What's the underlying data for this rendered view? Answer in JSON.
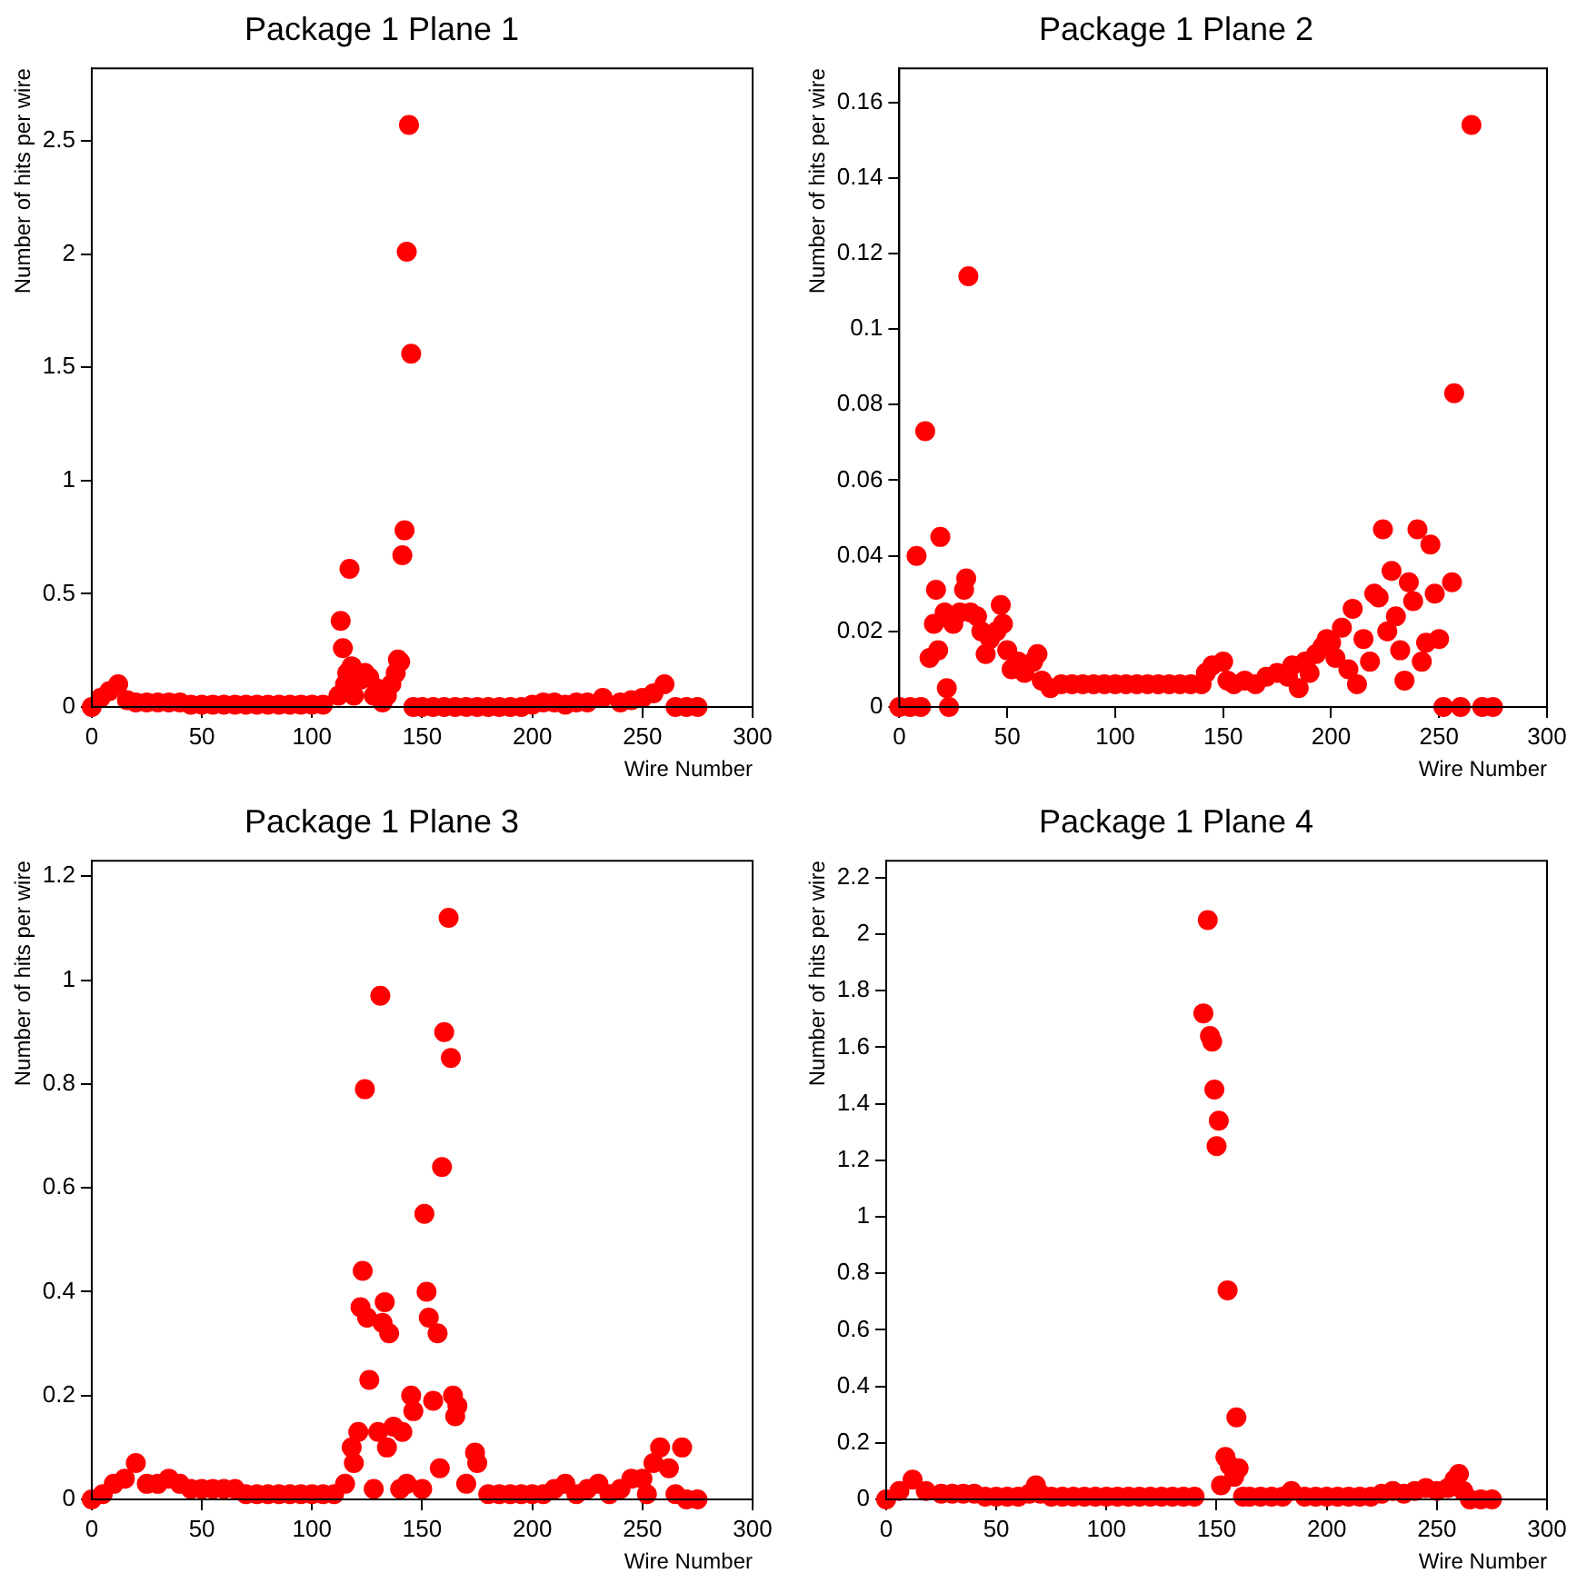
{
  "chart_data": [
    {
      "type": "scatter",
      "title": "Package 1 Plane 1",
      "xlabel": "Wire Number",
      "ylabel": "Number of hits per wire",
      "color": "#ff0000",
      "marker": "circle",
      "xlim": [
        0,
        300
      ],
      "xticks": [
        0,
        50,
        100,
        150,
        200,
        250,
        300
      ],
      "ylim": [
        0,
        2.82
      ],
      "yticks": [
        0,
        0.5,
        1,
        1.5,
        2,
        2.5
      ],
      "x": [
        0,
        4,
        8,
        12,
        16,
        20,
        25,
        30,
        35,
        40,
        45,
        50,
        55,
        60,
        65,
        70,
        75,
        80,
        85,
        90,
        95,
        100,
        105,
        112,
        113,
        114,
        115,
        116,
        117,
        118,
        119,
        122,
        124,
        126,
        128,
        130,
        132,
        134,
        136,
        138,
        139,
        140,
        141,
        142,
        143,
        144,
        145,
        146,
        150,
        155,
        160,
        165,
        170,
        175,
        180,
        185,
        190,
        195,
        200,
        205,
        210,
        215,
        220,
        225,
        232,
        240,
        245,
        250,
        255,
        260,
        265,
        270,
        275
      ],
      "values": [
        0,
        0.04,
        0.07,
        0.1,
        0.03,
        0.02,
        0.02,
        0.02,
        0.02,
        0.02,
        0.01,
        0.01,
        0.01,
        0.01,
        0.01,
        0.01,
        0.01,
        0.01,
        0.01,
        0.01,
        0.01,
        0.01,
        0.01,
        0.05,
        0.38,
        0.26,
        0.1,
        0.15,
        0.61,
        0.18,
        0.05,
        0.12,
        0.15,
        0.13,
        0.05,
        0.08,
        0.02,
        0.05,
        0.1,
        0.15,
        0.21,
        0.2,
        0.67,
        0.78,
        2.01,
        2.57,
        1.56,
        0,
        0,
        0,
        0,
        0,
        0,
        0,
        0,
        0,
        0,
        0,
        0.01,
        0.02,
        0.02,
        0.01,
        0.02,
        0.02,
        0.04,
        0.02,
        0.03,
        0.04,
        0.06,
        0.1,
        0,
        0,
        0
      ]
    },
    {
      "type": "scatter",
      "title": "Package 1 Plane 2",
      "xlabel": "Wire Number",
      "ylabel": "Number of hits per wire",
      "color": "#ff0000",
      "marker": "circle",
      "xlim": [
        0,
        300
      ],
      "xticks": [
        0,
        50,
        100,
        150,
        200,
        250,
        300
      ],
      "ylim": [
        0,
        0.169
      ],
      "yticks": [
        0,
        0.02,
        0.04,
        0.06,
        0.08,
        0.1,
        0.12,
        0.14,
        0.16
      ],
      "x": [
        0,
        5,
        8,
        10,
        12,
        14,
        16,
        17,
        18,
        19,
        21,
        22,
        23,
        25,
        28,
        30,
        31,
        32,
        33,
        36,
        38,
        40,
        42,
        45,
        47,
        48,
        50,
        52,
        55,
        58,
        62,
        64,
        66,
        70,
        75,
        80,
        85,
        90,
        95,
        100,
        105,
        110,
        115,
        120,
        125,
        130,
        135,
        140,
        142,
        145,
        150,
        152,
        155,
        160,
        165,
        170,
        175,
        180,
        182,
        185,
        188,
        190,
        193,
        196,
        198,
        200,
        202,
        205,
        208,
        210,
        212,
        215,
        218,
        220,
        222,
        224,
        226,
        228,
        230,
        232,
        234,
        236,
        238,
        240,
        242,
        244,
        246,
        248,
        250,
        252,
        256,
        257,
        260,
        265,
        270,
        275
      ],
      "values": [
        0,
        0,
        0.04,
        0,
        0.073,
        0.013,
        0.022,
        0.031,
        0.015,
        0.045,
        0.025,
        0.005,
        0,
        0.022,
        0.025,
        0.031,
        0.034,
        0.114,
        0.025,
        0.024,
        0.02,
        0.014,
        0.018,
        0.02,
        0.027,
        0.022,
        0.015,
        0.01,
        0.012,
        0.009,
        0.012,
        0.014,
        0.007,
        0.005,
        0.006,
        0.006,
        0.006,
        0.006,
        0.006,
        0.006,
        0.006,
        0.006,
        0.006,
        0.006,
        0.006,
        0.006,
        0.006,
        0.006,
        0.009,
        0.011,
        0.012,
        0.007,
        0.006,
        0.007,
        0.006,
        0.008,
        0.009,
        0.008,
        0.011,
        0.005,
        0.012,
        0.009,
        0.014,
        0.016,
        0.018,
        0.017,
        0.013,
        0.021,
        0.01,
        0.026,
        0.006,
        0.018,
        0.012,
        0.03,
        0.029,
        0.047,
        0.02,
        0.036,
        0.024,
        0.015,
        0.007,
        0.033,
        0.028,
        0.047,
        0.012,
        0.017,
        0.043,
        0.03,
        0.018,
        0,
        0.033,
        0.083,
        0,
        0.154,
        0,
        0
      ]
    },
    {
      "type": "scatter",
      "title": "Package 1 Plane 3",
      "xlabel": "Wire Number",
      "ylabel": "Number of hits per wire",
      "color": "#ff0000",
      "marker": "circle",
      "xlim": [
        0,
        300
      ],
      "xticks": [
        0,
        50,
        100,
        150,
        200,
        250,
        300
      ],
      "ylim": [
        0,
        1.23
      ],
      "yticks": [
        0,
        0.2,
        0.4,
        0.6,
        0.8,
        1,
        1.2
      ],
      "x": [
        0,
        5,
        10,
        15,
        20,
        25,
        30,
        35,
        40,
        45,
        50,
        55,
        60,
        65,
        70,
        75,
        80,
        85,
        90,
        95,
        100,
        105,
        110,
        115,
        118,
        119,
        121,
        122,
        123,
        124,
        125,
        126,
        128,
        130,
        131,
        132,
        133,
        134,
        135,
        137,
        140,
        141,
        143,
        145,
        146,
        150,
        151,
        152,
        153,
        155,
        157,
        158,
        159,
        160,
        162,
        163,
        164,
        165,
        166,
        170,
        174,
        175,
        180,
        185,
        190,
        195,
        200,
        205,
        210,
        215,
        220,
        225,
        230,
        235,
        240,
        245,
        250,
        252,
        255,
        258,
        262,
        265,
        268,
        270,
        275
      ],
      "values": [
        0,
        0.01,
        0.03,
        0.04,
        0.07,
        0.03,
        0.03,
        0.04,
        0.03,
        0.02,
        0.02,
        0.02,
        0.02,
        0.02,
        0.01,
        0.01,
        0.01,
        0.01,
        0.01,
        0.01,
        0.01,
        0.01,
        0.01,
        0.03,
        0.1,
        0.07,
        0.13,
        0.37,
        0.44,
        0.79,
        0.35,
        0.23,
        0.02,
        0.13,
        0.97,
        0.34,
        0.38,
        0.1,
        0.32,
        0.14,
        0.02,
        0.13,
        0.03,
        0.2,
        0.17,
        0.02,
        0.55,
        0.4,
        0.35,
        0.19,
        0.32,
        0.06,
        0.64,
        0.9,
        1.12,
        0.85,
        0.2,
        0.16,
        0.18,
        0.03,
        0.09,
        0.07,
        0.01,
        0.01,
        0.01,
        0.01,
        0.01,
        0.01,
        0.02,
        0.03,
        0.01,
        0.02,
        0.03,
        0.01,
        0.02,
        0.04,
        0.04,
        0.01,
        0.07,
        0.1,
        0.06,
        0.01,
        0.1,
        0,
        0
      ]
    },
    {
      "type": "scatter",
      "title": "Package 1 Plane 4",
      "xlabel": "Wire Number",
      "ylabel": "Number of hits per wire",
      "color": "#ff0000",
      "marker": "circle",
      "xlim": [
        0,
        300
      ],
      "xticks": [
        0,
        50,
        100,
        150,
        200,
        250,
        300
      ],
      "ylim": [
        0,
        2.26
      ],
      "yticks": [
        0,
        0.2,
        0.4,
        0.6,
        0.8,
        1,
        1.2,
        1.4,
        1.6,
        1.8,
        2,
        2.2
      ],
      "x": [
        0,
        6,
        12,
        18,
        25,
        30,
        35,
        40,
        45,
        50,
        55,
        60,
        65,
        68,
        70,
        75,
        80,
        85,
        90,
        95,
        100,
        105,
        110,
        115,
        120,
        125,
        130,
        135,
        140,
        144,
        146,
        147,
        148,
        149,
        150,
        151,
        152,
        154,
        155,
        156,
        158,
        159,
        160,
        162,
        165,
        170,
        175,
        180,
        184,
        190,
        195,
        200,
        205,
        210,
        215,
        220,
        225,
        230,
        235,
        240,
        245,
        250,
        255,
        258,
        260,
        262,
        265,
        270,
        275
      ],
      "values": [
        0,
        0.03,
        0.07,
        0.03,
        0.02,
        0.02,
        0.02,
        0.02,
        0.01,
        0.01,
        0.01,
        0.01,
        0.02,
        0.05,
        0.02,
        0.01,
        0.01,
        0.01,
        0.01,
        0.01,
        0.01,
        0.01,
        0.01,
        0.01,
        0.01,
        0.01,
        0.01,
        0.01,
        0.01,
        1.72,
        2.05,
        1.64,
        1.62,
        1.45,
        1.25,
        1.34,
        0.05,
        0.15,
        0.74,
        0.12,
        0.08,
        0.29,
        0.11,
        0.01,
        0.01,
        0.01,
        0.01,
        0.01,
        0.03,
        0.01,
        0.01,
        0.01,
        0.01,
        0.01,
        0.01,
        0.01,
        0.02,
        0.03,
        0.02,
        0.03,
        0.04,
        0.03,
        0.04,
        0.07,
        0.09,
        0.03,
        0,
        0,
        0
      ]
    }
  ]
}
